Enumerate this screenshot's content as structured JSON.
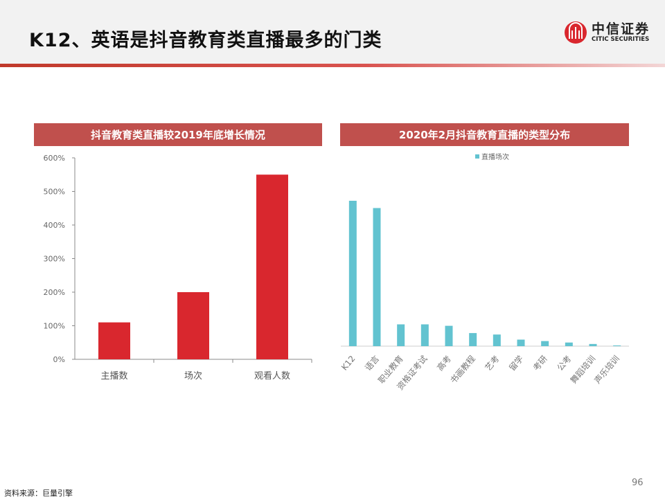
{
  "header": {
    "title": "K12、英语是抖音教育类直播最多的门类",
    "logo_cn": "中信证券",
    "logo_en": "CITIC SECURITIES"
  },
  "footer": {
    "source": "资料来源：巨量引擎",
    "page": "96"
  },
  "colors": {
    "accent": "#c0504d",
    "bar_red": "#d9272e",
    "bar_teal": "#62c3d0"
  },
  "chart_data": [
    {
      "type": "bar",
      "title": "抖音教育类直播较2019年底增长情况",
      "categories": [
        "主播数",
        "场次",
        "观看人数"
      ],
      "values": [
        110,
        200,
        550
      ],
      "ylabel": "",
      "xlabel": "",
      "ylim": [
        0,
        600
      ],
      "yticks": [
        "0%",
        "100%",
        "200%",
        "300%",
        "400%",
        "500%",
        "600%"
      ],
      "grid": false
    },
    {
      "type": "bar",
      "title": "2020年2月抖音教育直播的类型分布",
      "legend": [
        "直播场次"
      ],
      "legend_position": "top",
      "categories": [
        "K12",
        "语言",
        "职业教育",
        "资格证考试",
        "高考",
        "书画教程",
        "艺考",
        "留学",
        "考研",
        "公考",
        "舞蹈培训",
        "声乐培训"
      ],
      "values": [
        100,
        95,
        15,
        15,
        14,
        9,
        8,
        4.5,
        3.5,
        2.5,
        1.5,
        0.5
      ],
      "ylabel": "",
      "ylim": [
        0,
        100
      ],
      "grid": false
    }
  ]
}
